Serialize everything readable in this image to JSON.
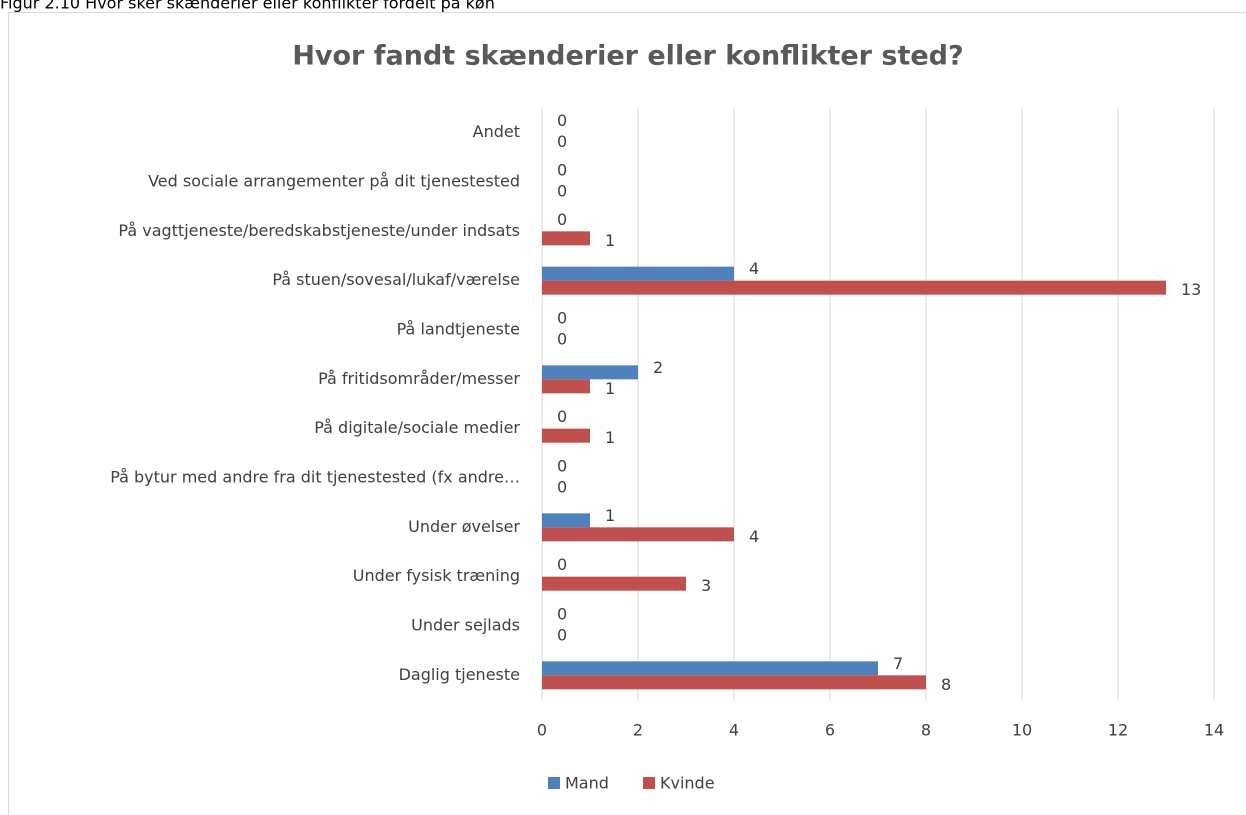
{
  "caption": "Figur 2.10 Hvor sker skænderier eller konflikter fordelt på køn",
  "chart_data": {
    "type": "hbar",
    "title": "Hvor fandt skænderier eller konflikter sted?",
    "categories": [
      "Andet",
      "Ved sociale arrangementer på dit tjenestested",
      "På vagttjeneste/beredskabstjeneste/under indsats",
      "På stuen/sovesal/lukaf/værelse",
      "På landtjeneste",
      "På fritidsområder/messer",
      "På digitale/sociale medier",
      "På bytur med andre fra dit tjenestested (fx andre…",
      "Under øvelser",
      "Under fysisk træning",
      "Under sejlads",
      "Daglig tjeneste"
    ],
    "series": [
      {
        "name": "Mand",
        "color": "#4f81bd",
        "values": [
          0,
          0,
          0,
          4,
          0,
          2,
          0,
          0,
          1,
          0,
          0,
          7
        ]
      },
      {
        "name": "Kvinde",
        "color": "#c0504d",
        "values": [
          0,
          0,
          1,
          13,
          0,
          1,
          1,
          0,
          4,
          3,
          0,
          8
        ]
      }
    ],
    "xlim": [
      0,
      14
    ],
    "xticks": [
      0,
      2,
      4,
      6,
      8,
      10,
      12,
      14
    ],
    "grid": true,
    "legend": "bottom"
  }
}
